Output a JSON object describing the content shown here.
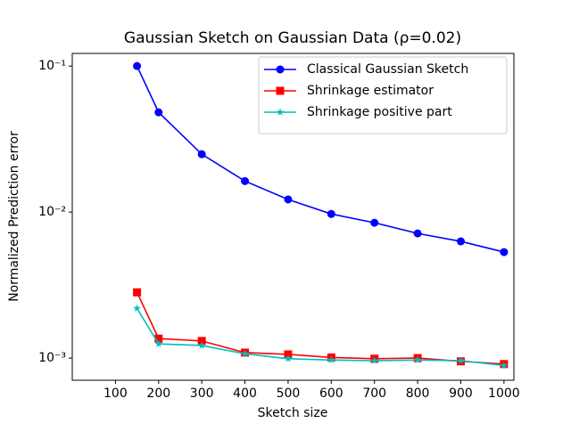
{
  "chart_data": {
    "type": "line",
    "title": "Gaussian Sketch on Gaussian Data (ρ=0.02)",
    "x_label": "Sketch size",
    "y_label": "Normalized Prediction error",
    "x": [
      150,
      200,
      300,
      400,
      500,
      600,
      700,
      800,
      900,
      1000
    ],
    "series": [
      {
        "name": "Classical Gaussian Sketch",
        "color": "#0000ff",
        "marker": "circle",
        "values": [
          0.1,
          0.0482,
          0.0249,
          0.0163,
          0.0122,
          0.0097,
          0.00845,
          0.00714,
          0.0063,
          0.00532
        ]
      },
      {
        "name": "Shrinkage estimator",
        "color": "#ff0000",
        "marker": "square",
        "values": [
          0.00282,
          0.00136,
          0.00131,
          0.00109,
          0.00106,
          0.00101,
          0.00099,
          0.001,
          0.00095,
          0.00091
        ]
      },
      {
        "name": "Shrinkage positive part",
        "color": "#00bfbf",
        "marker": "star",
        "values": [
          0.00219,
          0.00125,
          0.00122,
          0.00107,
          0.00099,
          0.00097,
          0.00096,
          0.00097,
          0.00096,
          0.00089
        ]
      }
    ],
    "xlim": [
      0,
      1023
    ],
    "xticks": [
      100,
      200,
      300,
      400,
      500,
      600,
      700,
      800,
      900,
      1000
    ],
    "ylim": [
      0.000705,
      0.122
    ],
    "y_scale": "log",
    "yticks": [
      {
        "value": 0.1,
        "label": "10⁻¹"
      },
      {
        "value": 0.01,
        "label": "10⁻²"
      },
      {
        "value": 0.001,
        "label": "10⁻³"
      }
    ],
    "legend": "upper right"
  }
}
